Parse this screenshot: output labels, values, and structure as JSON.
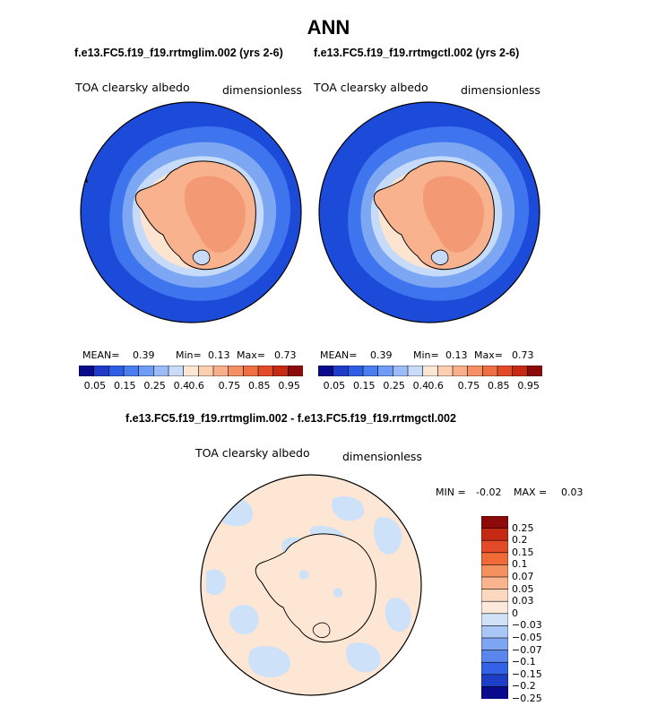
{
  "page_title": "ANN",
  "panels": [
    {
      "case": "f.e13.FC5.f19_f19.rrtmglim.002 (yrs 2-6)",
      "var_label": "TOA clearsky albedo",
      "units": "dimensionless",
      "mean_label": "MEAN=",
      "mean": "0.39",
      "min_label": "Min=",
      "min": "0.13",
      "max_label": "Max=",
      "max": "0.73"
    },
    {
      "case": "f.e13.FC5.f19_f19.rrtmgctl.002 (yrs 2-6)",
      "var_label": "TOA clearsky albedo",
      "units": "dimensionless",
      "mean_label": "MEAN=",
      "mean": "0.39",
      "min_label": "Min=",
      "min": "0.13",
      "max_label": "Max=",
      "max": "0.73"
    }
  ],
  "diff_panel": {
    "title": "f.e13.FC5.f19_f19.rrtmglim.002 - f.e13.FC5.f19_f19.rrtmgctl.002",
    "var_label": "TOA clearsky albedo",
    "units": "dimensionless",
    "min_label": "MIN =",
    "min": "-0.02",
    "max_label": "MAX =",
    "max": "0.03"
  },
  "chart_data": [
    {
      "type": "heatmap",
      "title": "f.e13.FC5.f19_f19.rrtmglim.002 (yrs 2-6)",
      "projection": "south-polar-stereographic",
      "variable": "TOA clearsky albedo",
      "units": "dimensionless",
      "stats": {
        "mean": 0.39,
        "min": 0.13,
        "max": 0.73
      },
      "colorbar": {
        "orientation": "horizontal",
        "tick_labels": [
          "0.05",
          "0.15",
          "0.25",
          "0.4",
          "0.6",
          "0.75",
          "0.85",
          "0.95"
        ]
      },
      "zones": [
        {
          "region": "southern ocean, outer",
          "value_range": [
            0.05,
            0.15
          ]
        },
        {
          "region": "southern ocean, middle",
          "value_range": [
            0.15,
            0.25
          ]
        },
        {
          "region": "sea ice margin",
          "value_range": [
            0.25,
            0.4
          ]
        },
        {
          "region": "coastal sea ice",
          "value_range": [
            0.5,
            0.6
          ]
        },
        {
          "region": "antarctic continent",
          "value_range": [
            0.6,
            0.75
          ]
        }
      ]
    },
    {
      "type": "heatmap",
      "title": "f.e13.FC5.f19_f19.rrtmgctl.002 (yrs 2-6)",
      "projection": "south-polar-stereographic",
      "variable": "TOA clearsky albedo",
      "units": "dimensionless",
      "stats": {
        "mean": 0.39,
        "min": 0.13,
        "max": 0.73
      },
      "colorbar": {
        "orientation": "horizontal",
        "tick_labels": [
          "0.05",
          "0.15",
          "0.25",
          "0.4",
          "0.6",
          "0.75",
          "0.85",
          "0.95"
        ]
      },
      "zones": [
        {
          "region": "southern ocean, outer",
          "value_range": [
            0.05,
            0.15
          ]
        },
        {
          "region": "southern ocean, middle",
          "value_range": [
            0.15,
            0.25
          ]
        },
        {
          "region": "sea ice margin",
          "value_range": [
            0.25,
            0.4
          ]
        },
        {
          "region": "coastal sea ice",
          "value_range": [
            0.5,
            0.6
          ]
        },
        {
          "region": "antarctic continent",
          "value_range": [
            0.6,
            0.75
          ]
        }
      ]
    },
    {
      "type": "heatmap",
      "title": "f.e13.FC5.f19_f19.rrtmglim.002 - f.e13.FC5.f19_f19.rrtmgctl.002",
      "projection": "south-polar-stereographic",
      "variable": "TOA clearsky albedo",
      "units": "dimensionless",
      "stats": {
        "min": -0.02,
        "max": 0.03
      },
      "colorbar": {
        "orientation": "vertical",
        "tick_labels": [
          "0.25",
          "0.2",
          "0.15",
          "0.1",
          "0.07",
          "0.05",
          "0.03",
          "0",
          "−0.03",
          "−0.05",
          "−0.07",
          "−0.1",
          "−0.15",
          "−0.2",
          "−0.25"
        ]
      },
      "zones": [
        {
          "region": "most of domain",
          "value_range": [
            0,
            0.03
          ]
        },
        {
          "region": "scattered ocean patches",
          "value_range": [
            -0.03,
            0
          ]
        }
      ]
    }
  ],
  "colors": {
    "horizontal_colorbar": [
      "#0a0a8c",
      "#1f3cc8",
      "#2e5ee6",
      "#4a7ef0",
      "#6f9cf5",
      "#9cbcf7",
      "#c8dcfa",
      "#fde6d4",
      "#fccfb0",
      "#f9b08a",
      "#f59065",
      "#ef6f45",
      "#e24a28",
      "#c72a14",
      "#8c0a0a"
    ],
    "vertical_colorbar": [
      "#8c0a0a",
      "#c72a14",
      "#e24a28",
      "#f06a38",
      "#f5905f",
      "#f9b48e",
      "#fdd8c0",
      "#fde9dc",
      "#cfe2f8",
      "#a9c6f5",
      "#7fa6f2",
      "#5a86ee",
      "#3462e6",
      "#1e3ec8",
      "#0a0a8c"
    ],
    "ocean_outer": "#1c4ad9",
    "ocean_mid": "#3e74ee",
    "ocean_inner": "#7ea7f3",
    "ice_edge": "#c5dbf9",
    "coastal": "#fde4d0",
    "land": "#f8b28e",
    "land_core": "#f39a75",
    "diff_bg": "#fde7d4",
    "diff_neg": "#cde1f8"
  }
}
